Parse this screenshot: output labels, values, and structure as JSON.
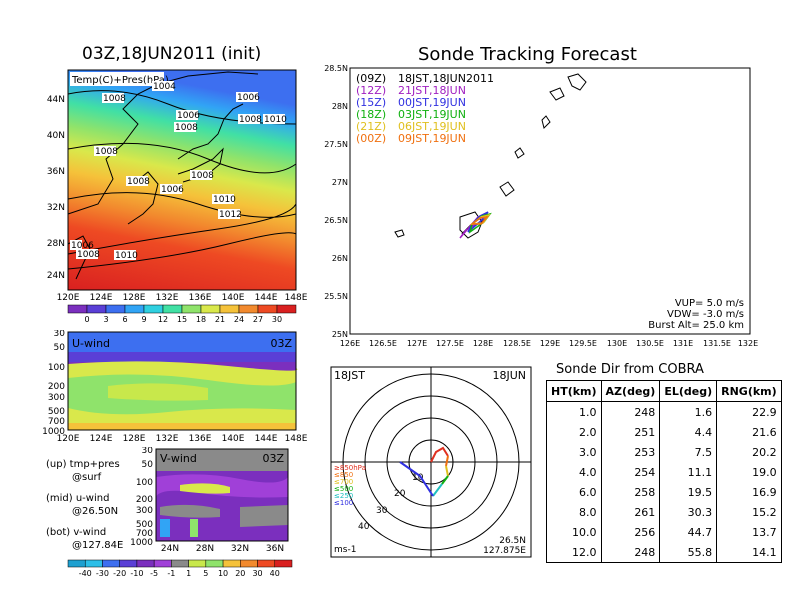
{
  "left": {
    "title": "03Z,18JUN2011 (init)",
    "map_label": "Temp(C)+Pres(hPa)",
    "lat_ticks": [
      "44N",
      "40N",
      "36N",
      "32N",
      "28N",
      "24N"
    ],
    "lon_ticks": [
      "120E",
      "124E",
      "128E",
      "132E",
      "136E",
      "140E",
      "144E",
      "148E"
    ],
    "isobar_labels": [
      "1004",
      "1008",
      "1006",
      "1006",
      "1008",
      "1008",
      "1010",
      "1008",
      "1008",
      "1006",
      "1008",
      "1010",
      "1012",
      "1008",
      "1010",
      "1006"
    ],
    "temp_scale": [
      "0",
      "3",
      "6",
      "9",
      "12",
      "15",
      "18",
      "21",
      "24",
      "27",
      "30"
    ],
    "temp_colors": [
      "#7b2fbe",
      "#5a3fd6",
      "#3d6ff0",
      "#31a4f5",
      "#2fd0e0",
      "#41e0a4",
      "#8fe36b",
      "#d9e84b",
      "#f5c23a",
      "#f28a2e",
      "#ee4a23",
      "#d92020"
    ],
    "u_wind": {
      "label": "U-wind",
      "time": "03Z",
      "p_ticks": [
        "30",
        "50",
        "100",
        "200",
        "300",
        "500",
        "700",
        "1000"
      ],
      "lon_ticks": [
        "120E",
        "124E",
        "128E",
        "132E",
        "136E",
        "140E",
        "144E",
        "148E"
      ]
    },
    "v_wind": {
      "label": "V-wind",
      "time": "03Z",
      "p_ticks": [
        "30",
        "50",
        "100",
        "200",
        "300",
        "500",
        "700",
        "1000"
      ],
      "lat_ticks": [
        "24N",
        "28N",
        "32N",
        "36N"
      ]
    },
    "legend_notes": [
      {
        "a": "(up) tmp+pres",
        "b": "@surf"
      },
      {
        "a": "(mid) u-wind",
        "b": "@26.50N"
      },
      {
        "a": "(bot) v-wind",
        "b": "@127.84E"
      }
    ],
    "wind_scale": [
      "-40",
      "-30",
      "-20",
      "-10",
      "-5",
      "-1",
      "1",
      "5",
      "10",
      "20",
      "30",
      "40"
    ],
    "wind_colors": [
      "#1ea0d0",
      "#2dbfe8",
      "#3d6ff0",
      "#5a3fd6",
      "#7b2fbe",
      "#a040d8",
      "#8a8a8a",
      "#c8e84b",
      "#8fe36b",
      "#f5c23a",
      "#f28a2e",
      "#ee4a23",
      "#d92020"
    ]
  },
  "track": {
    "title": "Sonde Tracking Forecast",
    "lat_ticks": [
      "28.5N",
      "28N",
      "27.5N",
      "27N",
      "26.5N",
      "26N",
      "25.5N",
      "25N"
    ],
    "lon_ticks": [
      "126E",
      "126.5E",
      "127E",
      "127.5E",
      "128E",
      "128.5E",
      "129E",
      "129.5E",
      "130E",
      "130.5E",
      "131E",
      "131.5E",
      "132E"
    ],
    "legend": [
      {
        "z": "(09Z)",
        "t": "18JST,18JUN2011",
        "color": "#000000"
      },
      {
        "z": "(12Z)",
        "t": "21JST,18JUN",
        "color": "#a020c0"
      },
      {
        "z": "(15Z)",
        "t": "00JST,19JUN",
        "color": "#3030e0"
      },
      {
        "z": "(18Z)",
        "t": "03JST,19JUN",
        "color": "#10b010"
      },
      {
        "z": "(21Z)",
        "t": "06JST,19JUN",
        "color": "#e0c020"
      },
      {
        "z": "(00Z)",
        "t": "09JST,19JUN",
        "color": "#f07010"
      }
    ],
    "vup": "VUP= 5.0 m/s",
    "vdw": "VDW= -3.0 m/s",
    "burst": "Burst Alt= 25.0 km"
  },
  "hodograph": {
    "top_left": "18JST",
    "top_right": "18JUN",
    "bottom_left": "ms-1",
    "bottom_right_1": "26.5N",
    "bottom_right_2": "127.875E",
    "ring_labels": [
      "10",
      "20",
      "30",
      "40"
    ],
    "levels": [
      {
        "label": "≥850hPa",
        "color": "#e03020"
      },
      {
        "label": "≤850",
        "color": "#f07010"
      },
      {
        "label": "≤700",
        "color": "#e0c020"
      },
      {
        "label": "≤500",
        "color": "#10b010"
      },
      {
        "label": "≤250",
        "color": "#20c0c0"
      },
      {
        "label": "≤100",
        "color": "#3030e0"
      }
    ]
  },
  "table": {
    "title": "Sonde Dir from COBRA",
    "headers": [
      "HT(km)",
      "AZ(deg)",
      "EL(deg)",
      "RNG(km)"
    ],
    "rows": [
      [
        "1.0",
        "248",
        "1.6",
        "22.9"
      ],
      [
        "2.0",
        "251",
        "4.4",
        "21.6"
      ],
      [
        "3.0",
        "253",
        "7.5",
        "20.2"
      ],
      [
        "4.0",
        "254",
        "11.1",
        "19.0"
      ],
      [
        "6.0",
        "258",
        "19.5",
        "16.9"
      ],
      [
        "8.0",
        "261",
        "30.3",
        "15.2"
      ],
      [
        "10.0",
        "256",
        "44.7",
        "13.7"
      ],
      [
        "12.0",
        "248",
        "55.8",
        "14.1"
      ]
    ]
  }
}
